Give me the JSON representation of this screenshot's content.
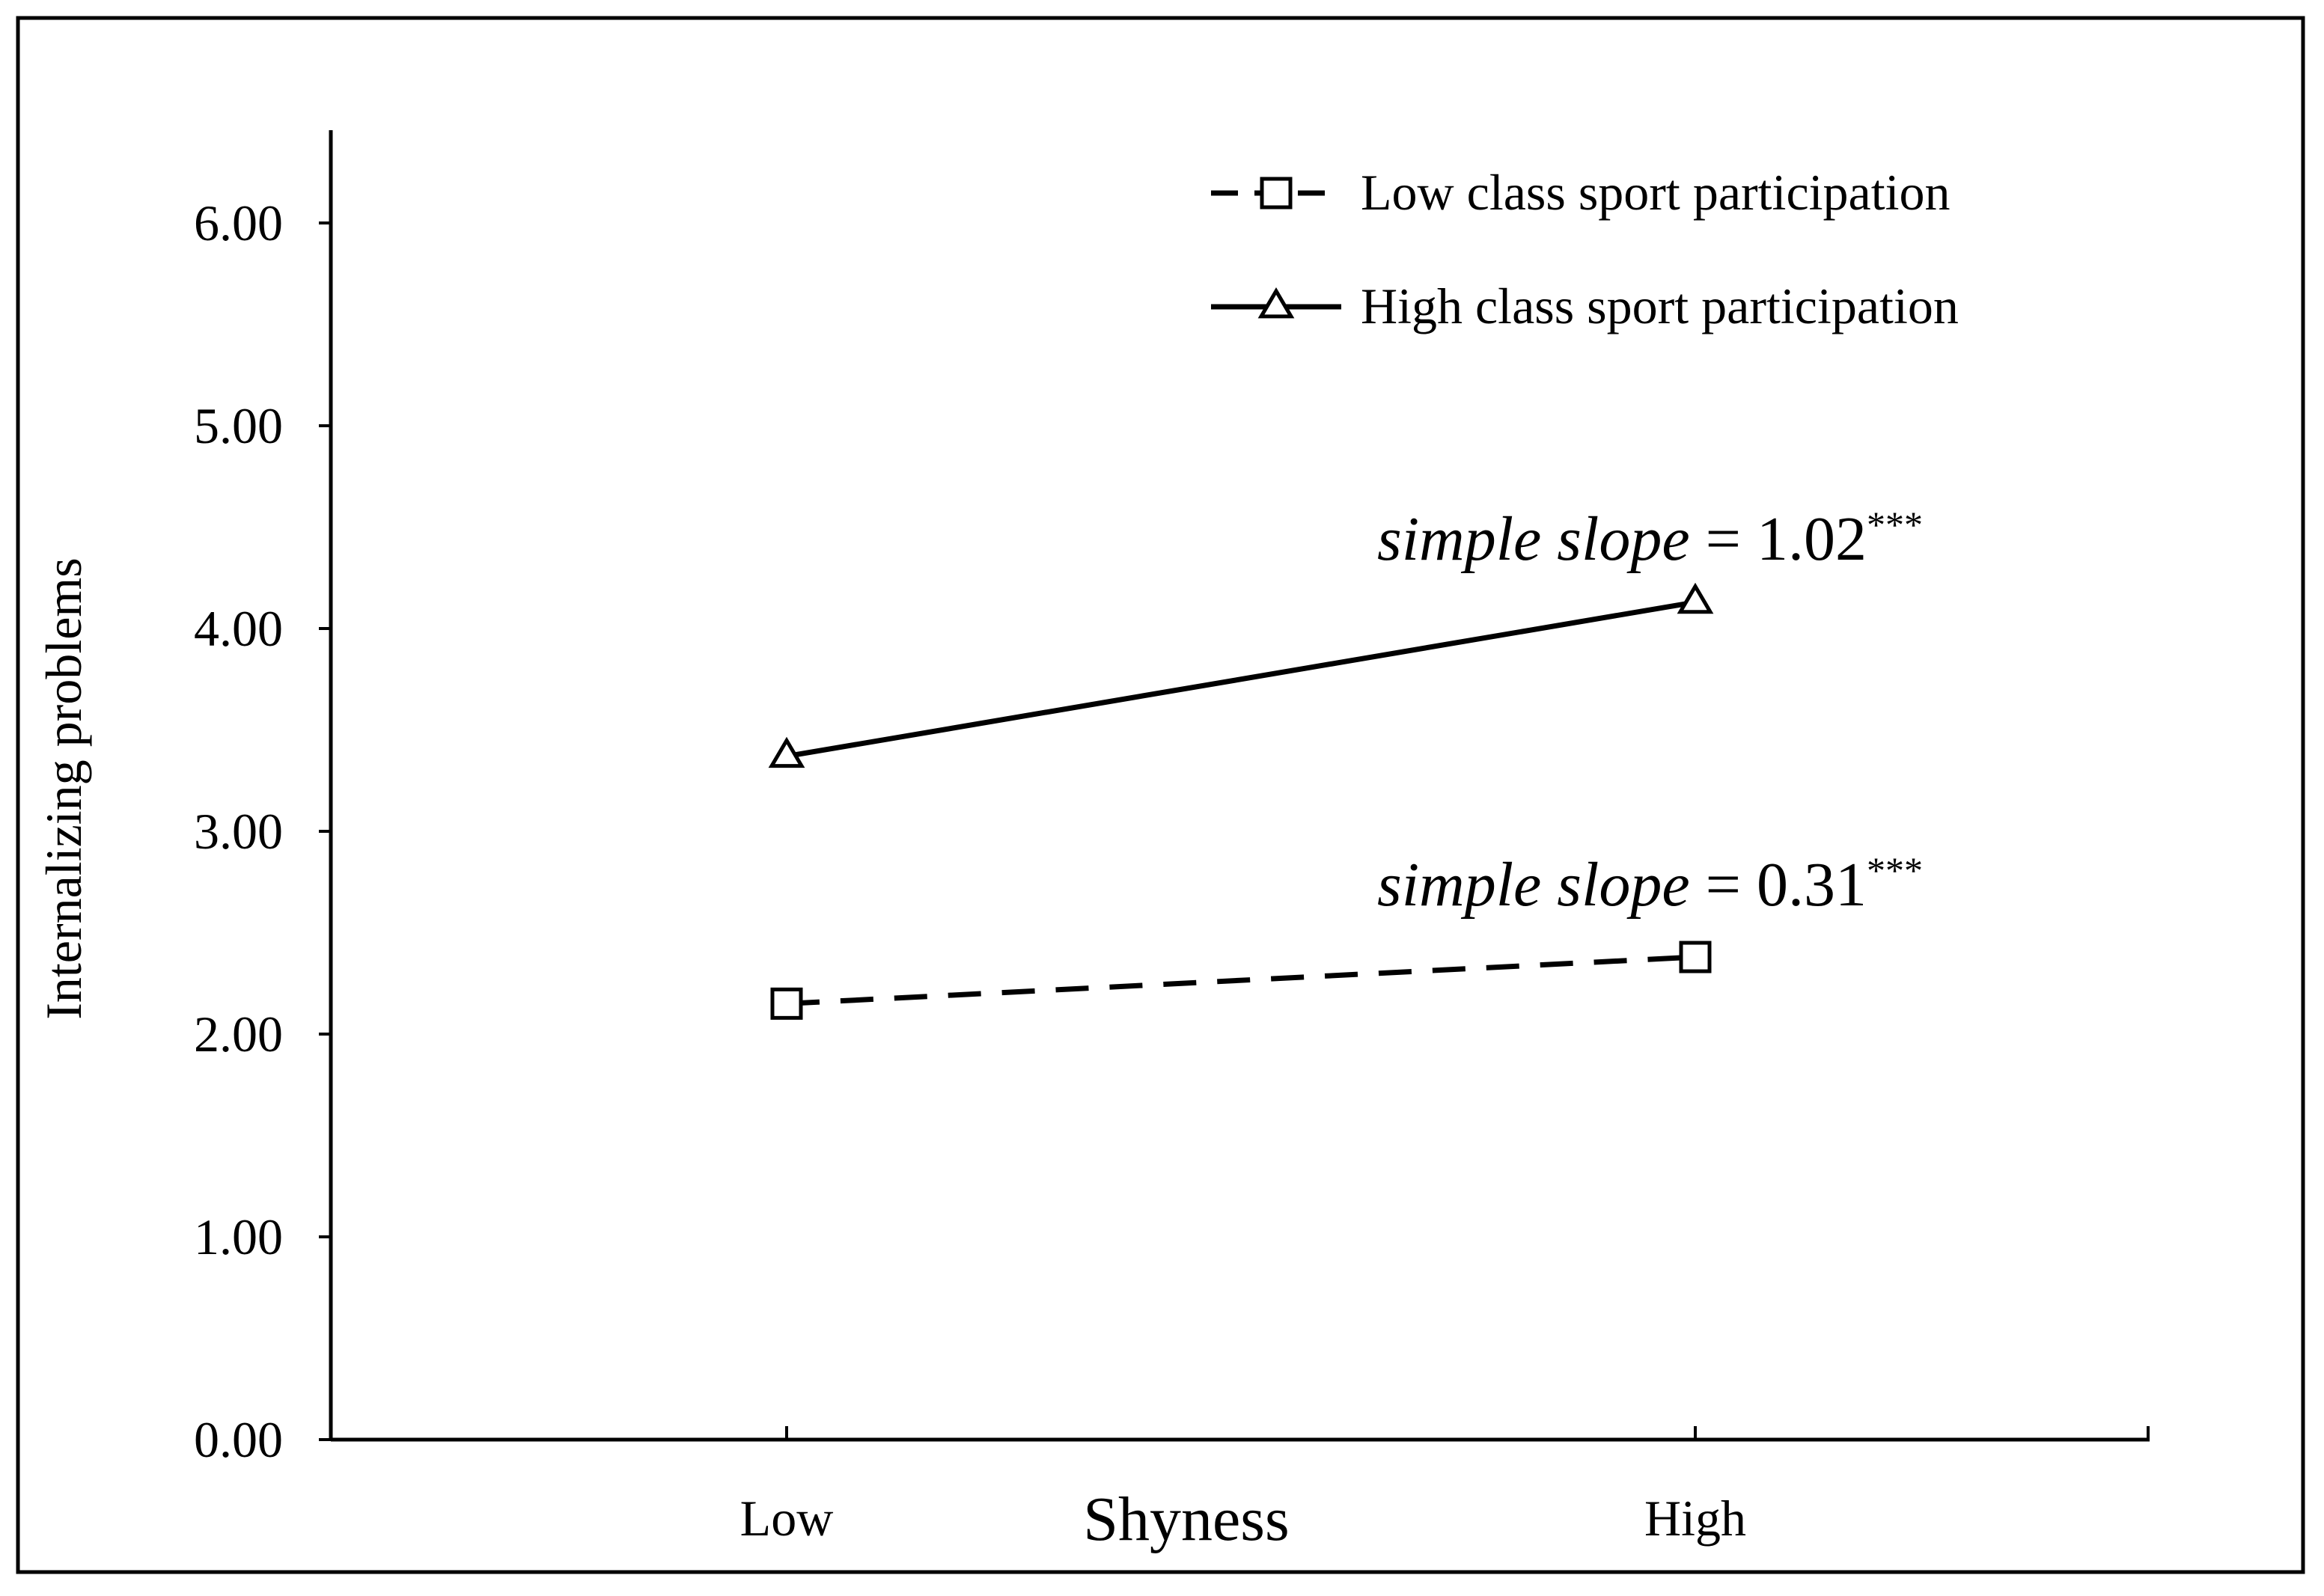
{
  "chart_data": {
    "type": "line",
    "title": "",
    "xlabel": "Shyness",
    "ylabel": "Internalizing problems",
    "categories": [
      "Low",
      "High"
    ],
    "ylim": [
      0,
      6.5
    ],
    "yticks": [
      "0.00",
      "1.00",
      "2.00",
      "3.00",
      "4.00",
      "5.00",
      "6.00"
    ],
    "grid": false,
    "legend_position": "top-right",
    "series": [
      {
        "name": "Low class sport participation",
        "values": [
          2.15,
          2.38
        ],
        "line_style": "dashed",
        "marker": "square",
        "annotation": {
          "italic": "simple slope",
          "rest": " = 0.31",
          "sup": "***"
        }
      },
      {
        "name": "High class sport participation",
        "values": [
          3.37,
          4.13
        ],
        "line_style": "solid",
        "marker": "triangle",
        "annotation": {
          "italic": "simple slope",
          "rest": " = 1.02",
          "sup": "***"
        }
      }
    ],
    "colors": {
      "line": "#000000",
      "marker_fill": "#ffffff",
      "background": "#ffffff"
    }
  }
}
